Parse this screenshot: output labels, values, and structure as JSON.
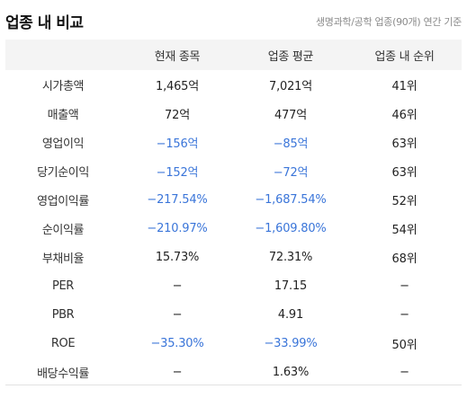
{
  "header": {
    "title": "업종 내 비교",
    "subtitle": "생명과학/공학 업종(90개) 연간 기준"
  },
  "table": {
    "columns": [
      "",
      "현재 종목",
      "업종 평균",
      "업종 내 순위"
    ],
    "rows": [
      {
        "label": "시가총액",
        "current": "1,465억",
        "average": "7,021억",
        "rank": "41위"
      },
      {
        "label": "매출액",
        "current": "72억",
        "average": "477억",
        "rank": "46위"
      },
      {
        "label": "영업이익",
        "current": "−156억",
        "average": "−85억",
        "rank": "63위"
      },
      {
        "label": "당기순이익",
        "current": "−152억",
        "average": "−72억",
        "rank": "63위"
      },
      {
        "label": "영업이익률",
        "current": "−217.54%",
        "average": "−1,687.54%",
        "rank": "52위"
      },
      {
        "label": "순이익률",
        "current": "−210.97%",
        "average": "−1,609.80%",
        "rank": "54위"
      },
      {
        "label": "부채비율",
        "current": "15.73%",
        "average": "72.31%",
        "rank": "68위"
      },
      {
        "label": "PER",
        "current": "−",
        "average": "17.15",
        "rank": "−"
      },
      {
        "label": "PBR",
        "current": "−",
        "average": "4.91",
        "rank": "−"
      },
      {
        "label": "ROE",
        "current": "−35.30%",
        "average": "−33.99%",
        "rank": "50위"
      },
      {
        "label": "배당수익률",
        "current": "−",
        "average": "1.63%",
        "rank": "−"
      }
    ]
  },
  "colors": {
    "negative": "#3a75d9",
    "header_bg": "#f4f4f4",
    "text": "#222222"
  }
}
